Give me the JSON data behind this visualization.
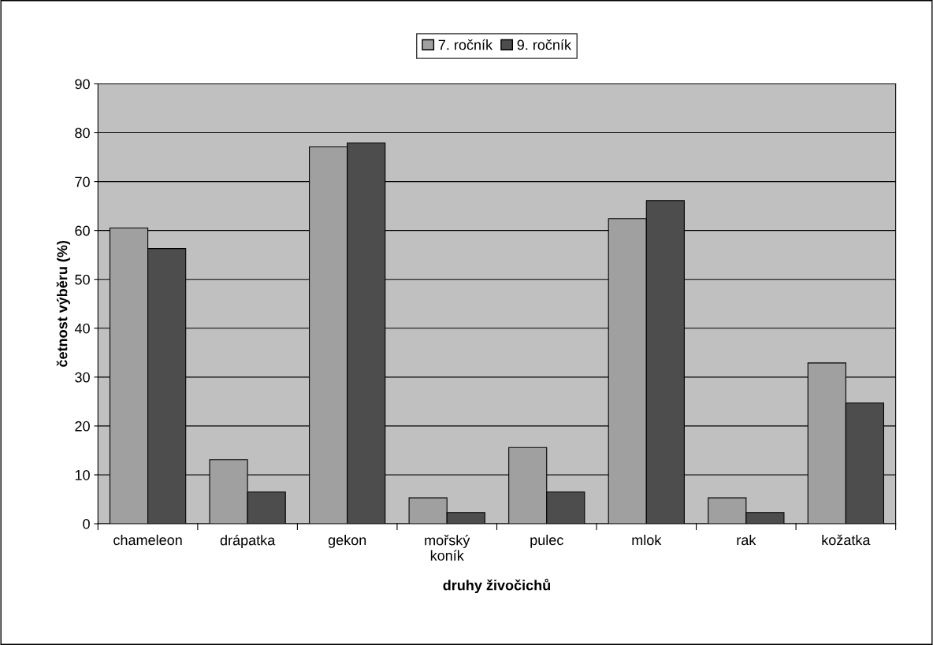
{
  "chart_data": {
    "type": "bar",
    "xlabel": "druhy živočichů",
    "ylabel": "četnost výběru (%)",
    "categories": [
      "chameleon",
      "drápatka",
      "gekon",
      "mořský\nkoník",
      "pulec",
      "mlok",
      "rak",
      "kožatka"
    ],
    "series": [
      {
        "name": "7. ročník",
        "color": "#a0a0a0",
        "values": [
          60.5,
          13.1,
          77.1,
          5.3,
          15.6,
          62.4,
          5.3,
          32.9
        ]
      },
      {
        "name": "9. ročník",
        "color": "#4d4d4d",
        "values": [
          56.3,
          6.5,
          77.9,
          2.3,
          6.5,
          66.1,
          2.3,
          24.7
        ]
      }
    ],
    "ylim": [
      0,
      90
    ],
    "yticks": [
      0,
      10,
      20,
      30,
      40,
      50,
      60,
      70,
      80,
      90
    ],
    "grid": "y",
    "legend": "top"
  }
}
